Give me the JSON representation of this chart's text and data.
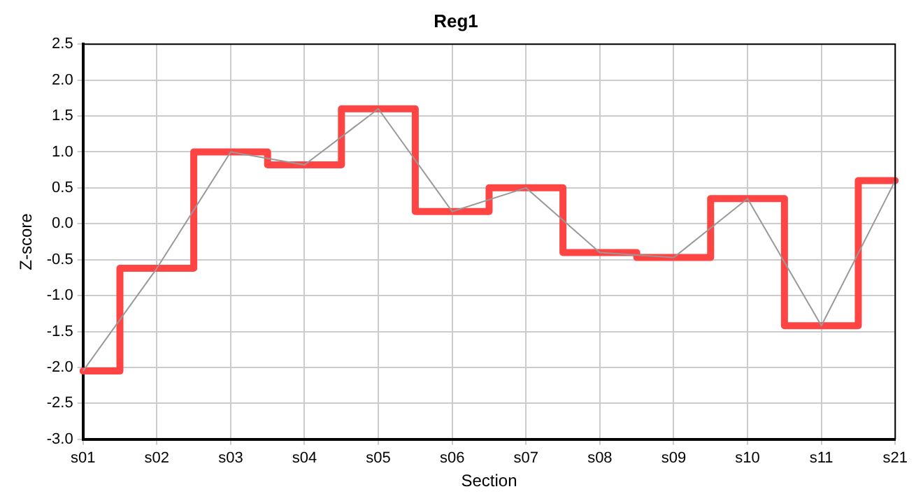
{
  "chart_data": {
    "type": "step",
    "title": "Reg1",
    "xlabel": "Section",
    "ylabel": "Z-score",
    "categories": [
      "s01",
      "s02",
      "s03",
      "s04",
      "s05",
      "s06",
      "s07",
      "s08",
      "s09",
      "s10",
      "s11",
      "s21"
    ],
    "series": [
      {
        "color": "#ff4444",
        "values": [
          -2.05,
          -0.62,
          1.0,
          0.82,
          1.6,
          0.17,
          0.5,
          -0.4,
          -0.47,
          0.35,
          -1.42,
          0.6
        ]
      },
      {
        "type": "line",
        "color": "#999999",
        "values": [
          -2.05,
          -0.62,
          1.0,
          0.82,
          1.6,
          0.17,
          0.5,
          -0.4,
          -0.47,
          0.35,
          -1.42,
          0.6
        ]
      }
    ],
    "ylim": [
      -3,
      2.5
    ],
    "yticks": [
      {
        "value": -3,
        "label": "-3.0"
      },
      {
        "value": -2.5,
        "label": "-2.5"
      },
      {
        "value": -2,
        "label": "-2.0"
      },
      {
        "value": -1.5,
        "label": "-1.5"
      },
      {
        "value": -1,
        "label": "-1.0"
      },
      {
        "value": -0.5,
        "label": "-0.5"
      },
      {
        "value": 0,
        "label": "0.0"
      },
      {
        "value": 0.5,
        "label": "0.5"
      },
      {
        "value": 1,
        "label": "1.0"
      },
      {
        "value": 1.5,
        "label": "1.5"
      },
      {
        "value": 2,
        "label": "2.0"
      },
      {
        "value": 2.5,
        "label": "2.5"
      }
    ],
    "grid": true,
    "legend": false,
    "marker": "none"
  }
}
